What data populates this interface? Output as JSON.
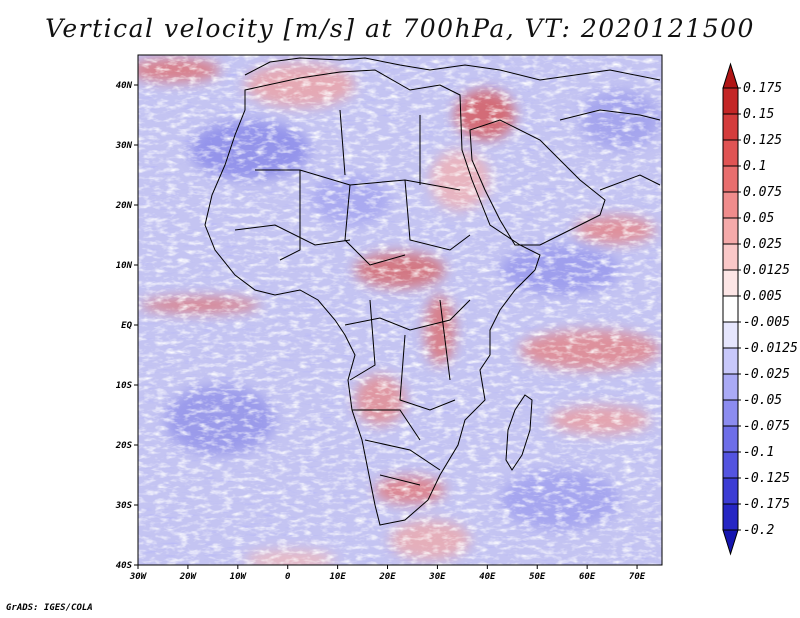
{
  "title": "Vertical velocity [m/s] at 700hPa, VT: 2020121500",
  "credit": "GrADS: IGES/COLA",
  "map": {
    "region": "Africa",
    "x_ticks": [
      "30W",
      "20W",
      "10W",
      "0",
      "10E",
      "20E",
      "30E",
      "40E",
      "50E",
      "60E",
      "70E"
    ],
    "y_ticks": [
      "40N",
      "30N",
      "20N",
      "10N",
      "EQ",
      "10S",
      "20S",
      "30S",
      "40S"
    ],
    "lon_range": [
      -30,
      75
    ],
    "lat_range": [
      -40,
      45
    ]
  },
  "colorbar": {
    "labels": [
      "0.175",
      "0.15",
      "0.125",
      "0.1",
      "0.075",
      "0.05",
      "0.025",
      "0.0125",
      "0.005",
      "-0.005",
      "-0.0125",
      "-0.025",
      "-0.05",
      "-0.075",
      "-0.1",
      "-0.125",
      "-0.175",
      "-0.2"
    ],
    "colors": [
      "#b01515",
      "#c42626",
      "#d43c3c",
      "#e05454",
      "#e86e6e",
      "#f08c8c",
      "#f5aaaa",
      "#fac8c8",
      "#fde6e6",
      "#ffffff",
      "#e6e6fd",
      "#c8c8fa",
      "#aaaaf5",
      "#8c8cf0",
      "#6e6ee8",
      "#5454e0",
      "#3c3cd4",
      "#2626c4",
      "#1515b0"
    ]
  }
}
